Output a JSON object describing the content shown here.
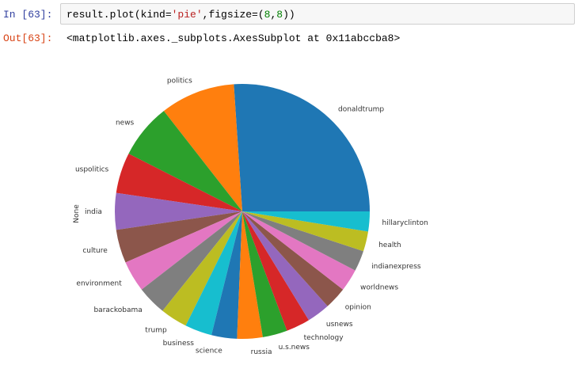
{
  "notebook": {
    "in_prompt": "In [63]:",
    "out_prompt": "Out[63]:",
    "code": {
      "part1": "result.plot(kind=",
      "part2": "'pie'",
      "part3": ",figsize=(",
      "part4": "8",
      "part5": ",",
      "part6": "8",
      "part7": "))"
    },
    "output_text": "<matplotlib.axes._subplots.AxesSubplot at 0x11abccba8>"
  },
  "chart_data": {
    "type": "pie",
    "ylabel": "None",
    "start_angle_deg": 0,
    "direction": "counterclockwise",
    "categories": [
      "donaldtrump",
      "politics",
      "news",
      "uspolitics",
      "india",
      "culture",
      "environment",
      "barackobama",
      "trump",
      "business",
      "science",
      "russia",
      "u.s.news",
      "technology",
      "usnews",
      "opinion",
      "worldnews",
      "indianexpress",
      "health",
      "hillaryclinton"
    ],
    "values": [
      25.8,
      9.4,
      6.9,
      5.1,
      4.6,
      4.2,
      3.9,
      3.7,
      3.4,
      3.4,
      3.2,
      3.2,
      3.1,
      3.0,
      2.9,
      2.8,
      2.8,
      2.6,
      2.5,
      2.5
    ],
    "colors": [
      "#1f77b4",
      "#ff7f0e",
      "#2ca02c",
      "#d62728",
      "#9467bd",
      "#8c564b",
      "#e377c2",
      "#7f7f7f",
      "#bcbd22",
      "#17becf",
      "#1f77b4",
      "#ff7f0e",
      "#2ca02c",
      "#d62728",
      "#9467bd",
      "#8c564b",
      "#e377c2",
      "#7f7f7f",
      "#bcbd22",
      "#17becf"
    ]
  }
}
